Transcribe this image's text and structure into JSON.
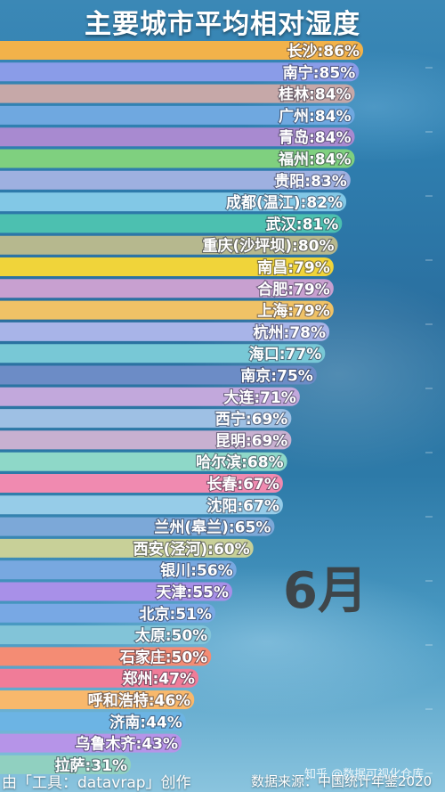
{
  "header": {
    "title": "主要城市平均相对湿度"
  },
  "chart_data": {
    "type": "bar",
    "orientation": "horizontal",
    "title": "主要城市平均相对湿度",
    "value_suffix": "%",
    "categories": [
      "长沙",
      "南宁",
      "桂林",
      "广州",
      "青岛",
      "福州",
      "贵阳",
      "成都(温江)",
      "武汉",
      "重庆(沙坪坝)",
      "南昌",
      "合肥",
      "上海",
      "杭州",
      "海口",
      "南京",
      "大连",
      "西宁",
      "昆明",
      "哈尔滨",
      "长春",
      "沈阳",
      "兰州(皋兰)",
      "西安(泾河)",
      "银川",
      "天津",
      "北京",
      "太原",
      "石家庄",
      "郑州",
      "呼和浩特",
      "济南",
      "乌鲁木齐",
      "拉萨"
    ],
    "values": [
      86,
      85,
      84,
      84,
      84,
      84,
      83,
      82,
      81,
      80,
      79,
      79,
      79,
      78,
      77,
      75,
      71,
      69,
      69,
      68,
      67,
      67,
      65,
      60,
      56,
      55,
      51,
      50,
      50,
      47,
      46,
      44,
      43,
      31
    ],
    "colors": [
      "#f2b24a",
      "#8a9ce8",
      "#c6a8a8",
      "#6fa8e0",
      "#a88ad0",
      "#7fd07f",
      "#9eb0e0",
      "#82c8e6",
      "#4cc0b0",
      "#b6b88e",
      "#f0d43a",
      "#c8a0d0",
      "#f0c266",
      "#a8b4e8",
      "#78c8d6",
      "#6c8cc6",
      "#c2a8dc",
      "#9ec0e4",
      "#c8b0d0",
      "#8ed8c8",
      "#f08ab0",
      "#96cce8",
      "#7ca8d8",
      "#c8d098",
      "#78a8e0",
      "#a890e8",
      "#78a8e4",
      "#82c4d8",
      "#f48c74",
      "#f07c98",
      "#f8b86c",
      "#6cb4e4",
      "#b694e8",
      "#90d0c0"
    ],
    "time_label": "6月",
    "xlim": [
      0,
      86
    ]
  },
  "footer": {
    "credit": "由「工具：datavrap」创作",
    "source": "数据来源：中国统计年鉴2020",
    "watermark": "知乎 @数据可视化仓库"
  }
}
